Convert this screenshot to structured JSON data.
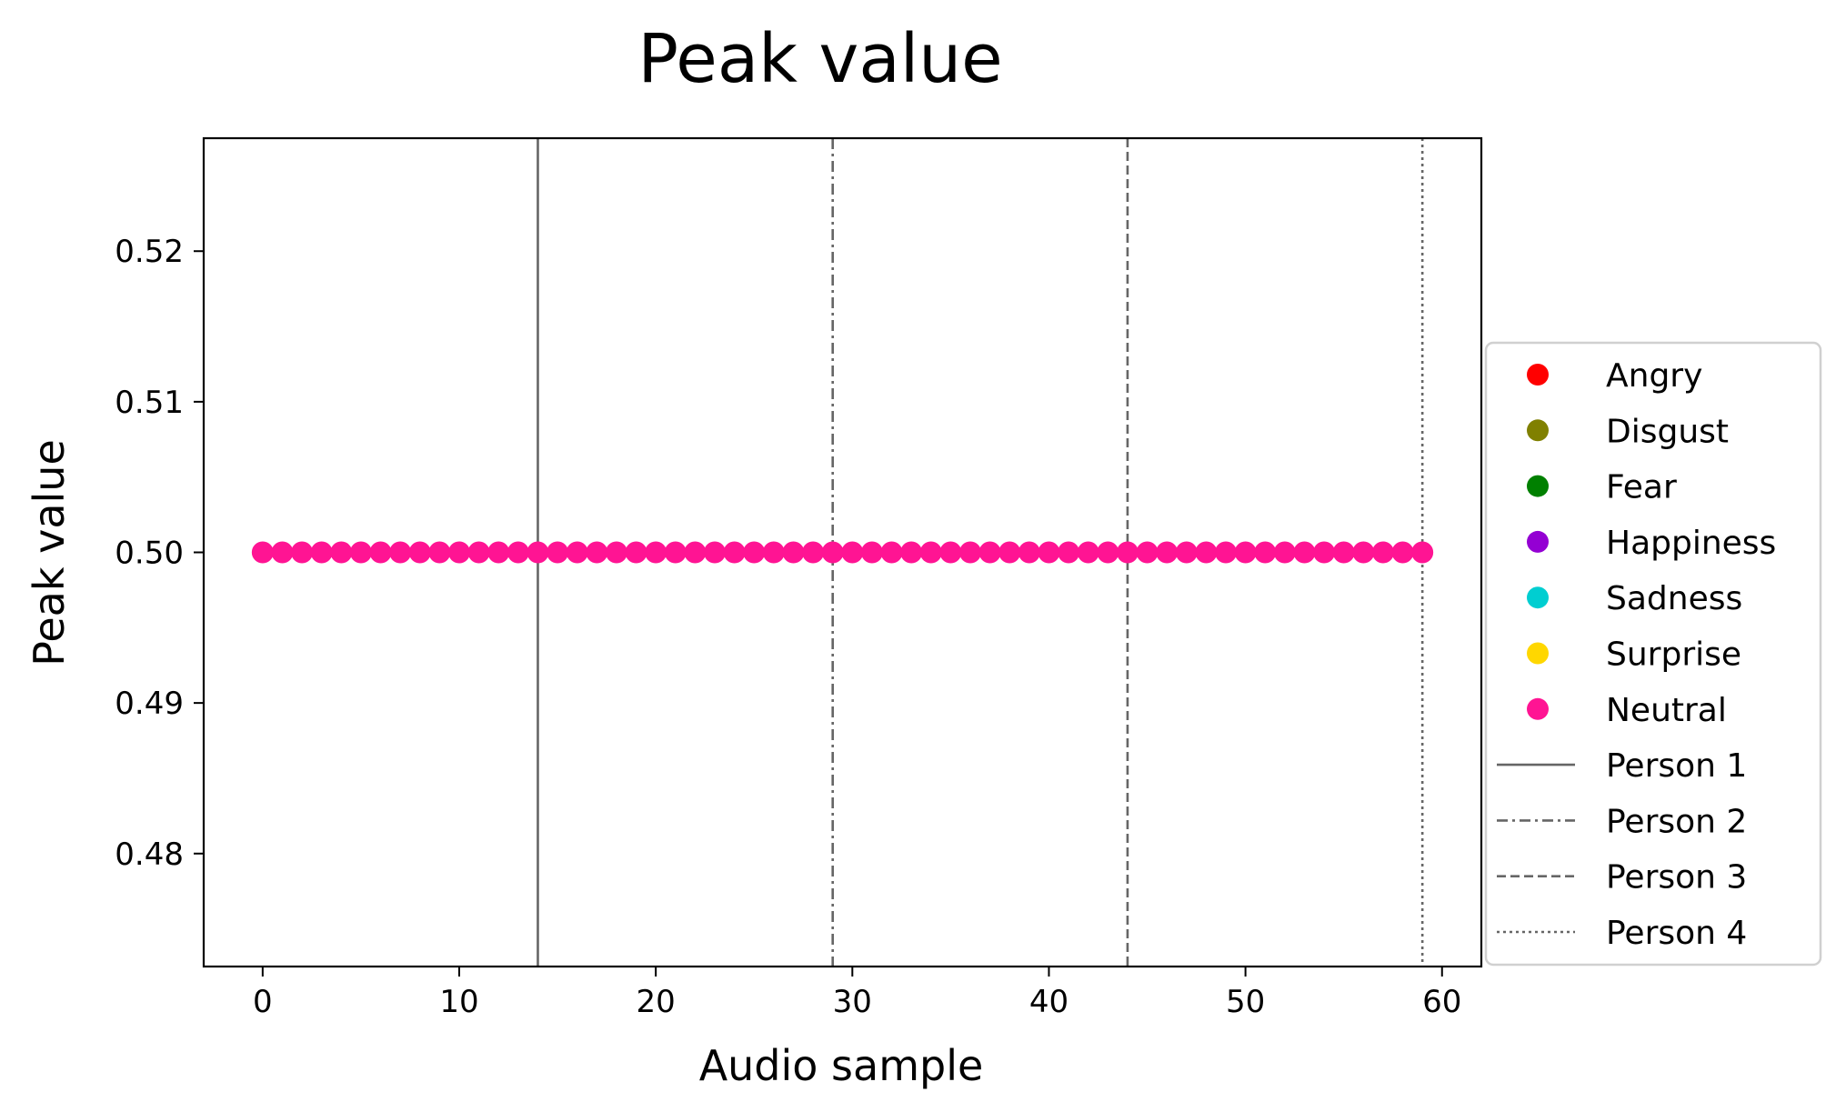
{
  "chart_data": {
    "type": "scatter",
    "title": "Peak value",
    "xlabel": "Audio sample",
    "ylabel": "Peak value",
    "xlim": [
      -3,
      62
    ],
    "ylim": [
      0.4725,
      0.5275
    ],
    "xticks": [
      0,
      10,
      20,
      30,
      40,
      50,
      60
    ],
    "xtick_labels": [
      "0",
      "10",
      "20",
      "30",
      "40",
      "50",
      "60"
    ],
    "yticks": [
      0.48,
      0.49,
      0.5,
      0.51,
      0.52
    ],
    "ytick_labels": [
      "0.48",
      "0.49",
      "0.50",
      "0.51",
      "0.52"
    ],
    "grid": false,
    "legend_position": "outside-right",
    "series": [
      {
        "name": "Angry",
        "color": "#ff0000",
        "x": [],
        "y": []
      },
      {
        "name": "Disgust",
        "color": "#808000",
        "x": [],
        "y": []
      },
      {
        "name": "Fear",
        "color": "#008000",
        "x": [],
        "y": []
      },
      {
        "name": "Happiness",
        "color": "#9400d3",
        "x": [],
        "y": []
      },
      {
        "name": "Sadness",
        "color": "#00ced1",
        "x": [],
        "y": []
      },
      {
        "name": "Surprise",
        "color": "#ffd700",
        "x": [],
        "y": []
      },
      {
        "name": "Neutral",
        "color": "#ff1493",
        "x": [
          0,
          1,
          2,
          3,
          4,
          5,
          6,
          7,
          8,
          9,
          10,
          11,
          12,
          13,
          14,
          15,
          16,
          17,
          18,
          19,
          20,
          21,
          22,
          23,
          24,
          25,
          26,
          27,
          28,
          29,
          30,
          31,
          32,
          33,
          34,
          35,
          36,
          37,
          38,
          39,
          40,
          41,
          42,
          43,
          44,
          45,
          46,
          47,
          48,
          49,
          50,
          51,
          52,
          53,
          54,
          55,
          56,
          57,
          58,
          59
        ],
        "y": [
          0.5,
          0.5,
          0.5,
          0.5,
          0.5,
          0.5,
          0.5,
          0.5,
          0.5,
          0.5,
          0.5,
          0.5,
          0.5,
          0.5,
          0.5,
          0.5,
          0.5,
          0.5,
          0.5,
          0.5,
          0.5,
          0.5,
          0.5,
          0.5,
          0.5,
          0.5,
          0.5,
          0.5,
          0.5,
          0.5,
          0.5,
          0.5,
          0.5,
          0.5,
          0.5,
          0.5,
          0.5,
          0.5,
          0.5,
          0.5,
          0.5,
          0.5,
          0.5,
          0.5,
          0.5,
          0.5,
          0.5,
          0.5,
          0.5,
          0.5,
          0.5,
          0.5,
          0.5,
          0.5,
          0.5,
          0.5,
          0.5,
          0.5,
          0.5,
          0.5
        ]
      }
    ],
    "vlines": [
      {
        "name": "Person 1",
        "x": 14,
        "style": "solid",
        "color": "#666666"
      },
      {
        "name": "Person 2",
        "x": 29,
        "style": "dashdot",
        "color": "#666666"
      },
      {
        "name": "Person 3",
        "x": 44,
        "style": "dashed",
        "color": "#666666"
      },
      {
        "name": "Person 4",
        "x": 59,
        "style": "dotted",
        "color": "#666666"
      }
    ]
  }
}
